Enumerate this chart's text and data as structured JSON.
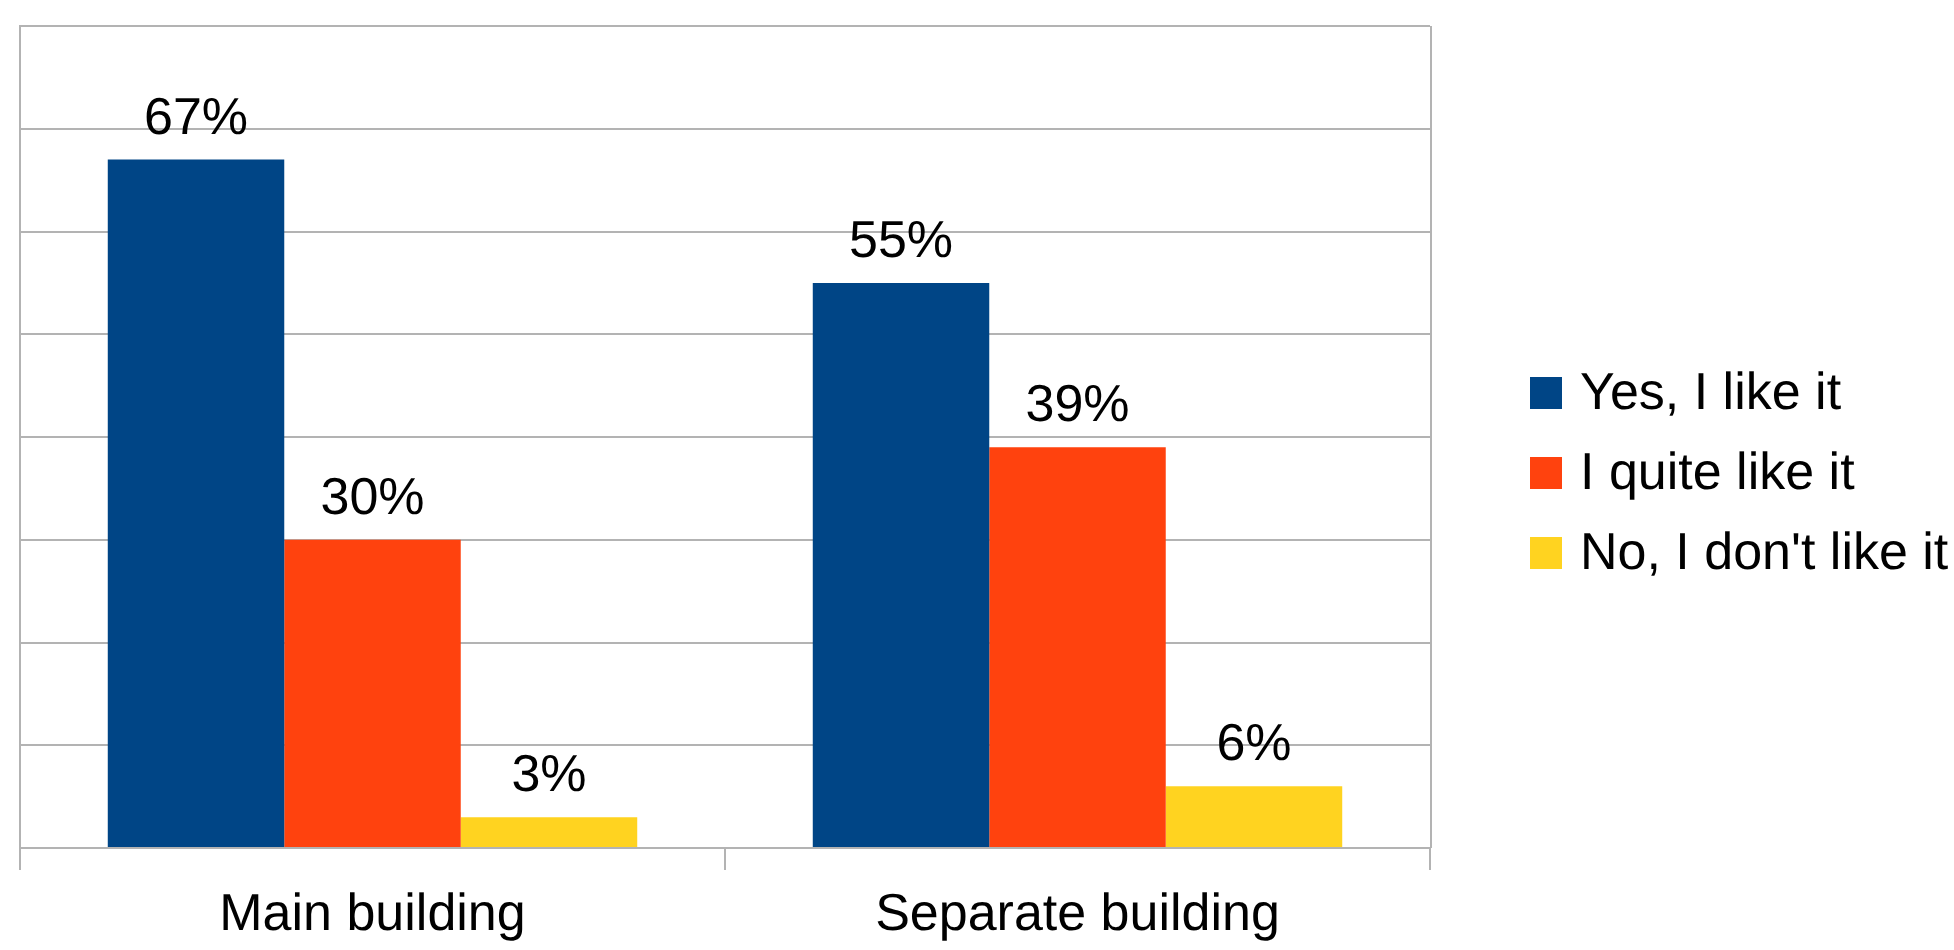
{
  "chart_data": {
    "type": "bar",
    "categories": [
      "Main building",
      "Separate building"
    ],
    "series": [
      {
        "name": "Yes, I like it",
        "color": "#004586",
        "values": [
          67,
          55
        ],
        "value_labels": [
          "67%",
          "55%"
        ]
      },
      {
        "name": "I quite like it",
        "color": "#ff420e",
        "values": [
          30,
          39
        ],
        "value_labels": [
          "30%",
          "39%"
        ]
      },
      {
        "name": "No, I don't like it",
        "color": "#ffd320",
        "values": [
          3,
          6
        ],
        "value_labels": [
          "3%",
          "6%"
        ]
      }
    ],
    "ylim": [
      0,
      80
    ],
    "yticks": [
      {
        "value": 0,
        "label": null
      },
      {
        "value": 10,
        "label": null
      },
      {
        "value": 20,
        "label": null
      },
      {
        "value": 30,
        "label": null
      },
      {
        "value": 40,
        "label": null
      },
      {
        "value": 50,
        "label": null
      },
      {
        "value": 60,
        "label": null
      },
      {
        "value": 70,
        "label": null
      },
      {
        "value": 80,
        "label": null
      }
    ],
    "grid": "y",
    "legend": "right",
    "tick_labels": "x"
  }
}
